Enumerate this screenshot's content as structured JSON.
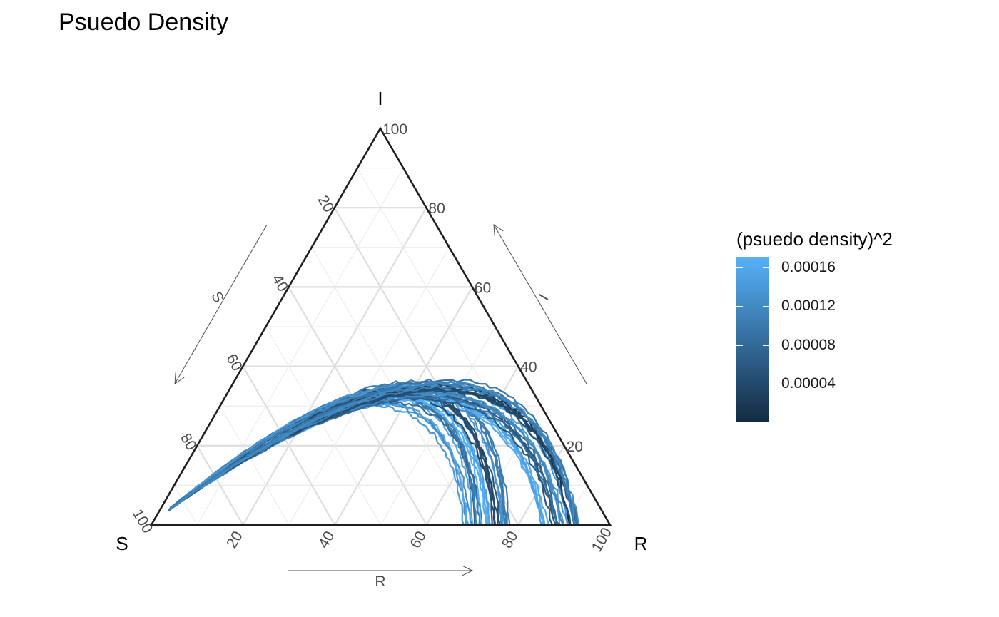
{
  "chart_data": {
    "type": "ternary-line",
    "title": "Psuedo Density",
    "axes": {
      "top": {
        "name": "I",
        "ticks": [
          20,
          40,
          60,
          80,
          100
        ]
      },
      "left": {
        "name": "S",
        "ticks": [
          20,
          40,
          60,
          80,
          100
        ]
      },
      "right": {
        "name": "R",
        "ticks": [
          20,
          40,
          60,
          80,
          100
        ]
      }
    },
    "range": [
      0,
      100
    ],
    "grid": true,
    "gridStep": 10,
    "lineColors": {
      "low": "#132B43",
      "high": "#56B1F7"
    },
    "curves": [
      {
        "anchor": "S=100",
        "endR": 69,
        "peakI": 31,
        "peakR": 34,
        "d": 0.00014
      },
      {
        "anchor": "S=100",
        "endR": 71,
        "peakI": 32,
        "peakR": 35,
        "d": 9e-05
      },
      {
        "anchor": "S=100",
        "endR": 73,
        "peakI": 33,
        "peakR": 36,
        "d": 0.00016
      },
      {
        "anchor": "S=100",
        "endR": 75,
        "peakI": 34,
        "peakR": 37,
        "d": 5e-05
      },
      {
        "anchor": "S=100",
        "endR": 77,
        "peakI": 35,
        "peakR": 38,
        "d": 0.00012
      },
      {
        "anchor": "S=100",
        "endR": 86,
        "peakI": 32,
        "peakR": 42,
        "d": 0.00015
      },
      {
        "anchor": "S=100",
        "endR": 88,
        "peakI": 33,
        "peakR": 43,
        "d": 7e-05
      },
      {
        "anchor": "S=100",
        "endR": 90,
        "peakI": 34,
        "peakR": 44,
        "d": 0.00013
      },
      {
        "anchor": "S=100",
        "endR": 92,
        "peakI": 35,
        "peakR": 45,
        "d": 3e-05
      },
      {
        "anchor": "S=100",
        "endR": 93,
        "peakI": 36,
        "peakR": 46,
        "d": 0.00011
      }
    ]
  },
  "legend": {
    "title": "(psuedo density)^2",
    "breaks": [
      {
        "label": "0.00016",
        "value": 0.00016
      },
      {
        "label": "0.00012",
        "value": 0.00012
      },
      {
        "label": "0.00008",
        "value": 8e-05
      },
      {
        "label": "0.00004",
        "value": 4e-05
      }
    ],
    "min": 1.5e-06,
    "max": 0.00017,
    "colorLow": "#132B43",
    "colorHigh": "#56B1F7"
  }
}
